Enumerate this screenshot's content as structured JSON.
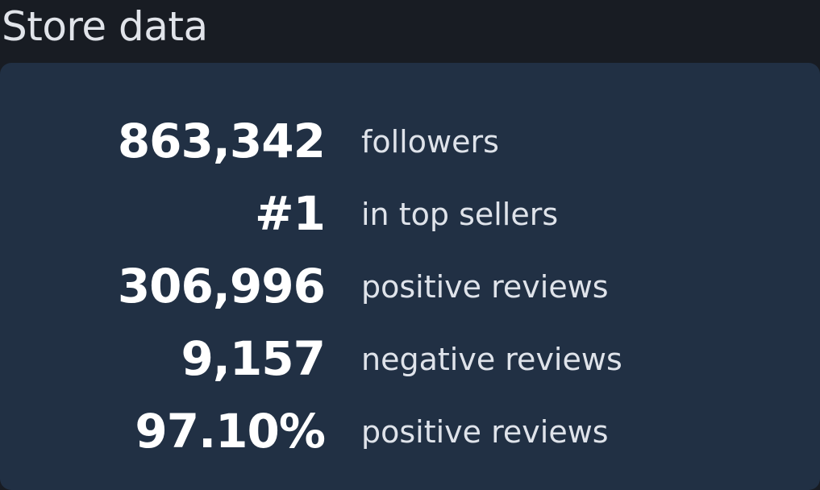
{
  "header": {
    "title": "Store data"
  },
  "stats": [
    {
      "value": "863,342",
      "label": "followers"
    },
    {
      "value": "#1",
      "label": "in top sellers"
    },
    {
      "value": "306,996",
      "label": "positive reviews"
    },
    {
      "value": "9,157",
      "label": "negative reviews"
    },
    {
      "value": "97.10%",
      "label": "positive reviews"
    }
  ],
  "colors": {
    "background": "#181c23",
    "panel": "#213044",
    "value_text": "#ffffff",
    "label_text": "#dfe3ea"
  }
}
